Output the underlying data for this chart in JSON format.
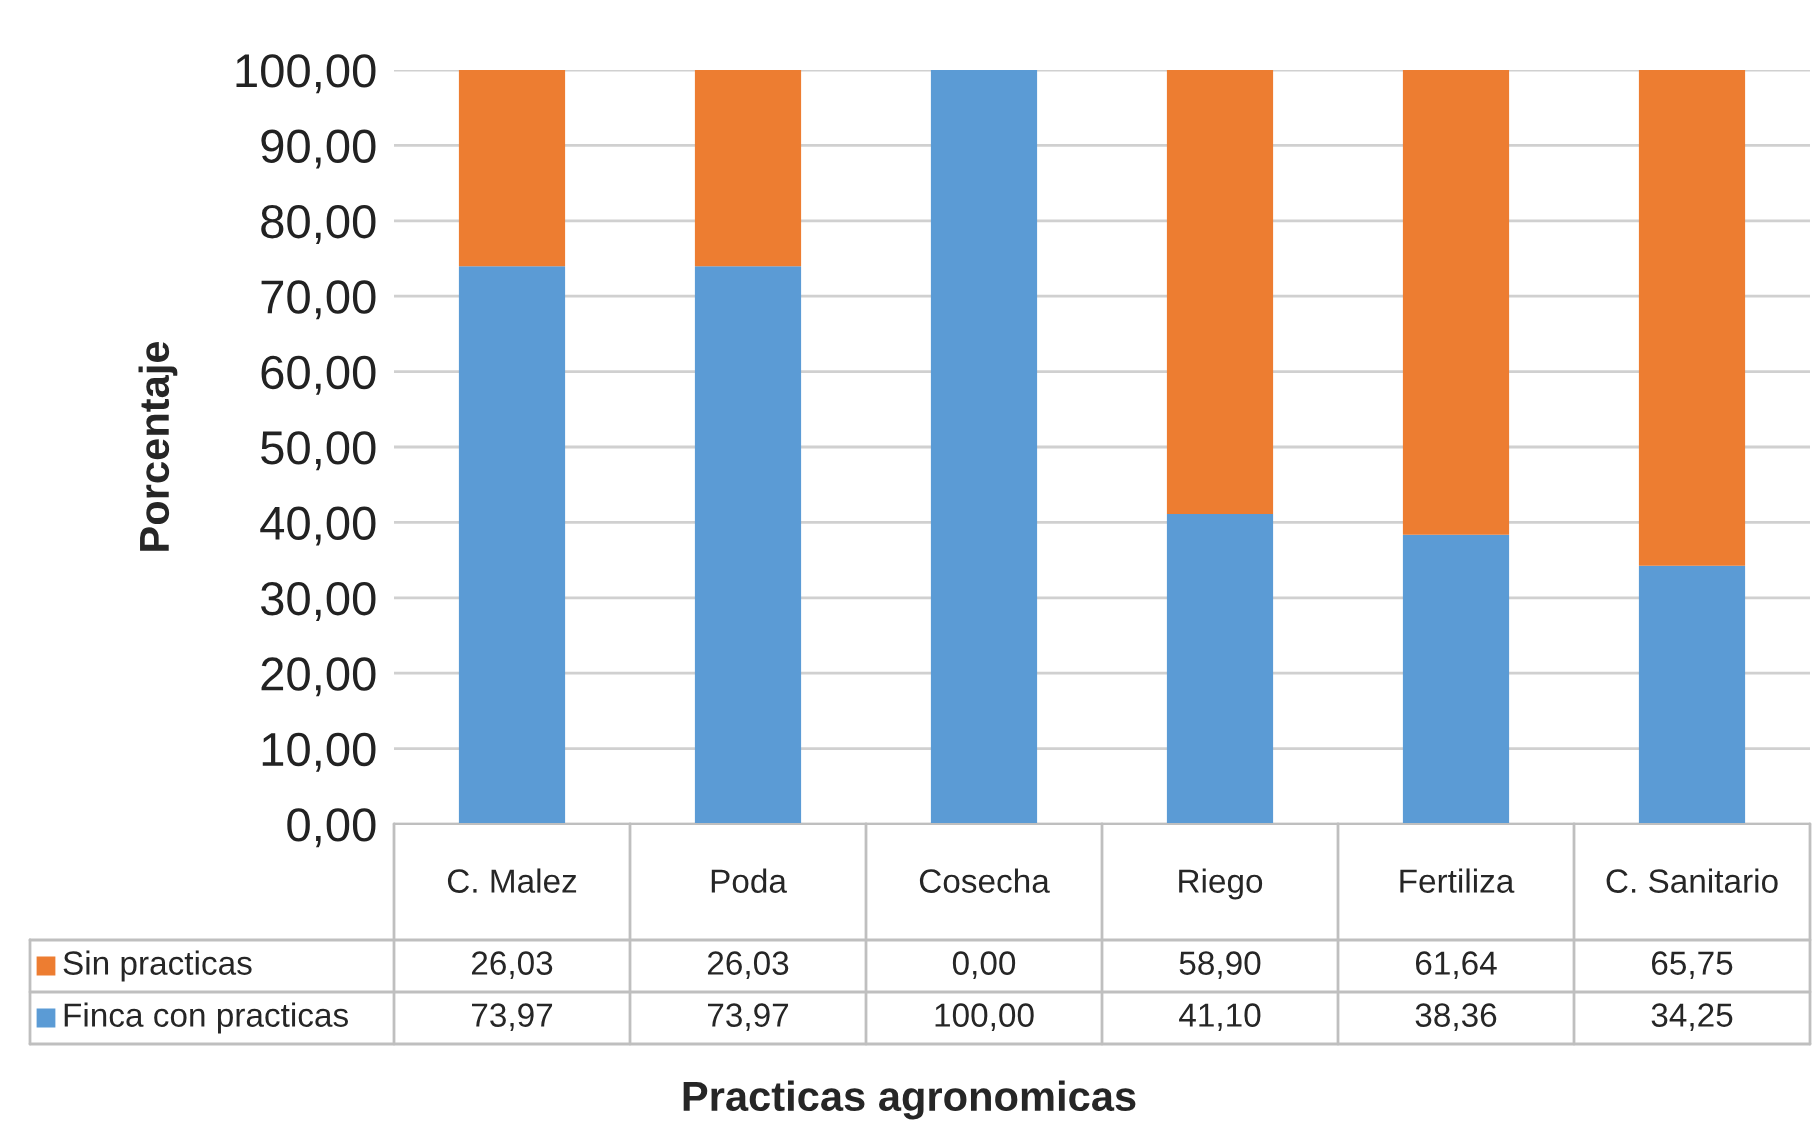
{
  "chart_data": {
    "type": "bar",
    "stacked": true,
    "xlabel": "Practicas agronomicas",
    "ylabel": "Porcentaje",
    "categories": [
      "C. Malez",
      "Poda",
      "Cosecha",
      "Riego",
      "Fertiliza",
      "C. Sanitario"
    ],
    "series": [
      {
        "name": "Finca con practicas",
        "color": "#5b9bd5",
        "values": [
          73.97,
          73.97,
          100.0,
          41.1,
          38.36,
          34.25
        ],
        "value_labels": [
          "73,97",
          "73,97",
          "100,00",
          "41,10",
          "38,36",
          "34,25"
        ]
      },
      {
        "name": "Sin practicas",
        "color": "#ed7d31",
        "values": [
          26.03,
          26.03,
          0.0,
          58.9,
          61.64,
          65.75
        ],
        "value_labels": [
          "26,03",
          "26,03",
          "0,00",
          "58,90",
          "61,64",
          "65,75"
        ]
      }
    ],
    "ylim": [
      0,
      100
    ],
    "yticks": [
      {
        "value": 0,
        "label": "0,00"
      },
      {
        "value": 10,
        "label": "10,00"
      },
      {
        "value": 20,
        "label": "20,00"
      },
      {
        "value": 30,
        "label": "30,00"
      },
      {
        "value": 40,
        "label": "40,00"
      },
      {
        "value": 50,
        "label": "50,00"
      },
      {
        "value": 60,
        "label": "60,00"
      },
      {
        "value": 70,
        "label": "70,00"
      },
      {
        "value": 80,
        "label": "80,00"
      },
      {
        "value": 90,
        "label": "90,00"
      },
      {
        "value": 100,
        "label": "100,00"
      }
    ],
    "grid": "y",
    "legend": "bottom",
    "data_labels": true
  }
}
